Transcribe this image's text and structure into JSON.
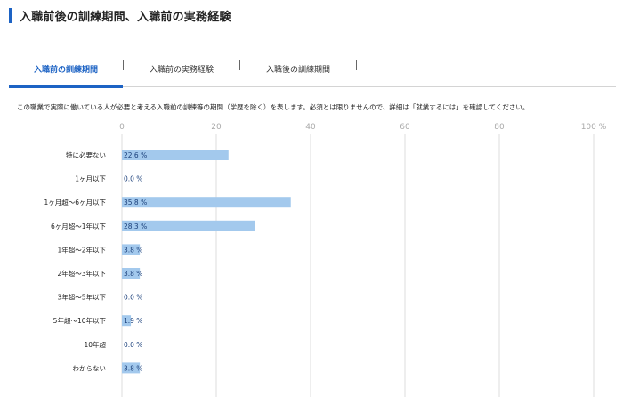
{
  "page": {
    "title": "入職前後の訓練期間、入職前の実務経験"
  },
  "tabs": [
    {
      "label": "入職前の訓練期間",
      "active": true
    },
    {
      "label": "入職前の実務経験",
      "active": false
    },
    {
      "label": "入職後の訓練期間",
      "active": false
    }
  ],
  "description": "この職業で実際に働いている人が必要と考える入職前の訓練等の期間（学歴を除く）を表します。必須とは限りませんので、詳細は「就業するには」を確認してください。",
  "chart_data": {
    "type": "bar",
    "orientation": "horizontal",
    "categories": [
      "特に必要ない",
      "1ヶ月以下",
      "1ヶ月超～6ヶ月以下",
      "6ヶ月超～1年以下",
      "1年超～2年以下",
      "2年超～3年以下",
      "3年超～5年以下",
      "5年超～10年以下",
      "10年超",
      "わからない"
    ],
    "values": [
      22.6,
      0.0,
      35.8,
      28.3,
      3.8,
      3.8,
      0.0,
      1.9,
      0.0,
      3.8
    ],
    "value_labels": [
      "22.6 %",
      "0.0 %",
      "35.8 %",
      "28.3 %",
      "3.8 %",
      "3.8 %",
      "0.0 %",
      "1.9 %",
      "0.0 %",
      "3.8 %"
    ],
    "xlim": [
      0,
      100
    ],
    "xticks": [
      0,
      20,
      40,
      60,
      80,
      100
    ],
    "xtick_labels": [
      "0",
      "20",
      "40",
      "60",
      "80",
      "100 %"
    ],
    "tick_position": "top",
    "grid": true,
    "bar_color": "#a3c9ed",
    "label_color": "#1a3f7a"
  },
  "colors": {
    "accent": "#1d63c4",
    "grid": "#dcdcdc"
  }
}
